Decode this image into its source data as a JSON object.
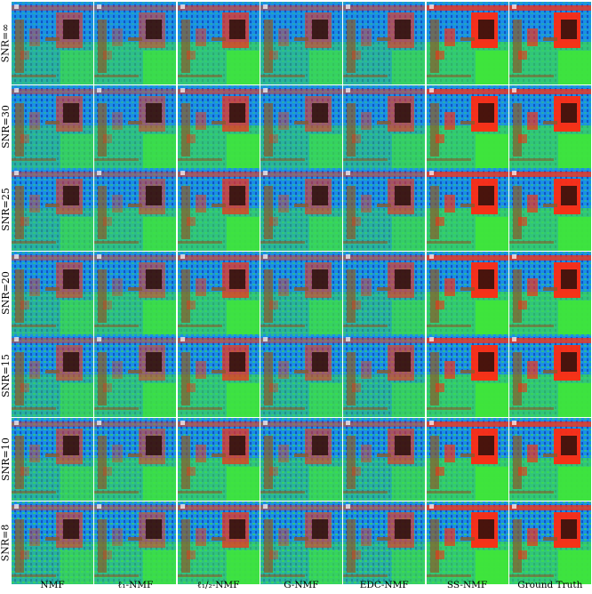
{
  "row_labels": [
    "SNR=∞",
    "SNR=30",
    "SNR=25",
    "SNR=20",
    "SNR=15",
    "SNR=10",
    "SNR=8"
  ],
  "column_labels": [
    "NMF",
    "ℓ₁-NMF",
    "ℓ₁/₂-NMF",
    "G-NMF",
    "EDC-NMF",
    "SS-NMF",
    "Ground Truth"
  ],
  "colors": {
    "background_blue": "#1a8fe6",
    "vegetation_green": "#3fe63a",
    "roof_red": "#ff2b12",
    "road_brown": "#8a5a2a",
    "dark_center": "#2a0f0a"
  }
}
